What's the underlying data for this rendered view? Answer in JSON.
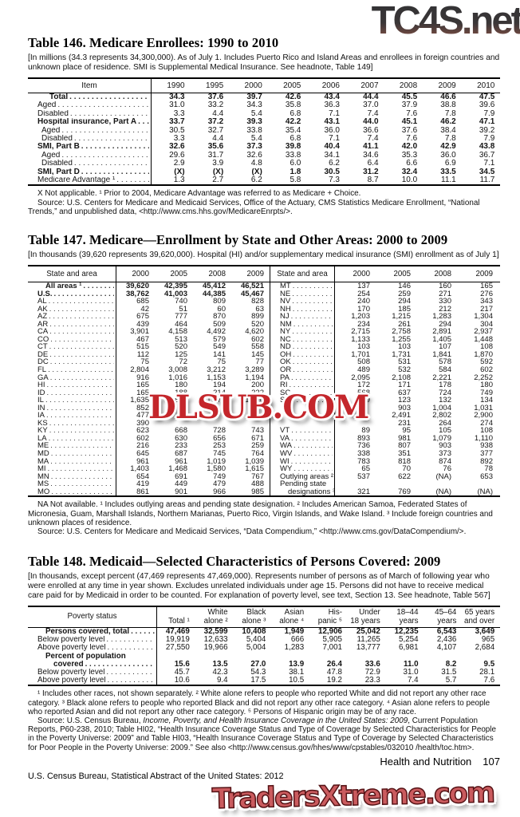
{
  "watermarks": {
    "top": "TC4S.net",
    "middle": "DLSUB.COM",
    "bottom": "TradersXtreme.com"
  },
  "table146": {
    "title": "Table 146. Medicare Enrollees: 1990 to 2010",
    "headnote": "[In millions (34.3 represents 34,300,000). As of July 1. Includes Puerto Rico and Island Areas and enrollees in foreign countries and unknown place of residence. SMI is Supplemental Medical Insurance. See headnote, Table 149]",
    "stub_header": "Item",
    "col_headers": [
      "1990",
      "1995",
      "2000",
      "2005",
      "2006",
      "2007",
      "2008",
      "2009",
      "2010"
    ],
    "rows": [
      {
        "label": "Total",
        "b": 1,
        "in": 3,
        "v": [
          "34.3",
          "37.6",
          "39.7",
          "42.6",
          "43.4",
          "44.4",
          "45.5",
          "46.6",
          "47.5"
        ]
      },
      {
        "label": "Aged",
        "v": [
          "31.0",
          "33.2",
          "34.3",
          "35.8",
          "36.3",
          "37.0",
          "37.9",
          "38.8",
          "39.6"
        ]
      },
      {
        "label": "Disabled",
        "v": [
          "3.3",
          "4.4",
          "5.4",
          "6.8",
          "7.1",
          "7.4",
          "7.6",
          "7.8",
          "7.9"
        ]
      },
      {
        "label": "Hospital insurance, Part A",
        "b": 1,
        "v": [
          "33.7",
          "37.2",
          "39.3",
          "42.2",
          "43.1",
          "44.0",
          "45.1",
          "46.2",
          "47.1"
        ]
      },
      {
        "label": "Aged",
        "in": 1,
        "v": [
          "30.5",
          "32.7",
          "33.8",
          "35.4",
          "36.0",
          "36.6",
          "37.6",
          "38.4",
          "39.2"
        ]
      },
      {
        "label": "Disabled",
        "in": 1,
        "v": [
          "3.3",
          "4.4",
          "5.4",
          "6.8",
          "7.1",
          "7.4",
          "7.6",
          "7.8",
          "7.9"
        ]
      },
      {
        "label": "SMI, Part B",
        "b": 1,
        "v": [
          "32.6",
          "35.6",
          "37.3",
          "39.8",
          "40.4",
          "41.1",
          "42.0",
          "42.9",
          "43.8"
        ]
      },
      {
        "label": "Aged",
        "in": 1,
        "v": [
          "29.6",
          "31.7",
          "32.6",
          "33.8",
          "34.1",
          "34.6",
          "35.3",
          "36.0",
          "36.7"
        ]
      },
      {
        "label": "Disabled",
        "in": 1,
        "v": [
          "2.9",
          "3.9",
          "4.8",
          "6.0",
          "6.2",
          "6.4",
          "6.6",
          "6.9",
          "7.1"
        ]
      },
      {
        "label": "SMI, Part D",
        "b": 1,
        "v": [
          "(X)",
          "(X)",
          "(X)",
          "1.8",
          "30.5",
          "31.2",
          "32.4",
          "33.5",
          "34.5"
        ]
      },
      {
        "label": "Medicare Advantage ¹",
        "v": [
          "1.3",
          "2.7",
          "6.2",
          "5.8",
          "7.3",
          "8.7",
          "10.0",
          "11.1",
          "11.7"
        ]
      }
    ],
    "footnote": "X Not applicable. ¹ Prior to 2004, Medicare Advantage was referred to as Medicare + Choice.",
    "source": "Source: U.S. Centers for Medicare and Medicaid Services, Office of the Actuary, CMS Statistics Medicare Enrollment, “National Trends,” and unpublished data, <http://www.cms.hhs.gov/MedicareEnrpts/>."
  },
  "table147": {
    "title": "Table 147. Medicare—Enrollment by State and Other Areas: 2000 to 2009",
    "headnote": "[In thousands (39,620 represents 39,620,000). Hospital (HI) and/or supplementary medical insurance (SMI) enrollment as of July 1]",
    "stub_header": "State and area",
    "col_headers": [
      "2000",
      "2005",
      "2008",
      "2009"
    ],
    "left_rows": [
      {
        "label": "All areas ¹",
        "b": 1,
        "in": 2,
        "v": [
          "39,620",
          "42,395",
          "45,412",
          "46,521"
        ]
      },
      {
        "label": "U.S.",
        "b": 1,
        "v": [
          "38,762",
          "41,003",
          "44,385",
          "45,467"
        ]
      },
      {
        "label": "AL",
        "v": [
          "685",
          "740",
          "809",
          "828"
        ]
      },
      {
        "label": "AK",
        "v": [
          "42",
          "51",
          "60",
          "63"
        ]
      },
      {
        "label": "AZ",
        "v": [
          "675",
          "777",
          "870",
          "899"
        ]
      },
      {
        "label": "AR",
        "v": [
          "439",
          "464",
          "509",
          "520"
        ]
      },
      {
        "label": "CA",
        "v": [
          "3,901",
          "4,158",
          "4,492",
          "4,620"
        ]
      },
      {
        "label": "CO",
        "v": [
          "467",
          "513",
          "579",
          "602"
        ]
      },
      {
        "label": "CT",
        "v": [
          "515",
          "520",
          "549",
          "558"
        ]
      },
      {
        "label": "DE",
        "v": [
          "112",
          "125",
          "141",
          "145"
        ]
      },
      {
        "label": "DC",
        "v": [
          "75",
          "72",
          "75",
          "77"
        ]
      },
      {
        "label": "FL",
        "v": [
          "2,804",
          "3,008",
          "3,212",
          "3,289"
        ]
      },
      {
        "label": "GA",
        "v": [
          "916",
          "1,016",
          "1,153",
          "1,194"
        ]
      },
      {
        "label": "HI",
        "v": [
          "165",
          "180",
          "194",
          "200"
        ]
      },
      {
        "label": "ID",
        "v": [
          "165",
          "188",
          "214",
          "222"
        ]
      },
      {
        "label": "IL",
        "v": [
          "1,635",
          "1,674",
          "1,775",
          "1,806"
        ]
      },
      {
        "label": "IN",
        "v": [
          "852",
          "",
          "",
          ""
        ]
      },
      {
        "label": "IA",
        "v": [
          "477",
          "",
          "",
          ""
        ]
      },
      {
        "label": "KS",
        "v": [
          "390",
          "",
          "",
          ""
        ]
      },
      {
        "label": "KY",
        "v": [
          "623",
          "668",
          "728",
          "743"
        ]
      },
      {
        "label": "LA",
        "v": [
          "602",
          "630",
          "656",
          "671"
        ]
      },
      {
        "label": "ME",
        "v": [
          "216",
          "233",
          "253",
          "259"
        ]
      },
      {
        "label": "MD",
        "v": [
          "645",
          "687",
          "745",
          "764"
        ]
      },
      {
        "label": "MA",
        "v": [
          "961",
          "961",
          "1,019",
          "1,039"
        ]
      },
      {
        "label": "MI",
        "v": [
          "1,403",
          "1,468",
          "1,580",
          "1,615"
        ]
      },
      {
        "label": "MN",
        "v": [
          "654",
          "691",
          "749",
          "767"
        ]
      },
      {
        "label": "MS",
        "v": [
          "419",
          "449",
          "479",
          "488"
        ]
      },
      {
        "label": "MO",
        "v": [
          "861",
          "901",
          "966",
          "985"
        ]
      }
    ],
    "right_rows": [
      {
        "label": "MT",
        "v": [
          "137",
          "146",
          "160",
          "165"
        ]
      },
      {
        "label": "NE",
        "v": [
          "254",
          "259",
          "271",
          "276"
        ]
      },
      {
        "label": "NV",
        "v": [
          "240",
          "294",
          "330",
          "343"
        ]
      },
      {
        "label": "NH",
        "v": [
          "170",
          "185",
          "212",
          "217"
        ]
      },
      {
        "label": "NJ",
        "v": [
          "1,203",
          "1,215",
          "1,283",
          "1,304"
        ]
      },
      {
        "label": "NM",
        "v": [
          "234",
          "261",
          "294",
          "304"
        ]
      },
      {
        "label": "NY",
        "v": [
          "2,715",
          "2,758",
          "2,891",
          "2,937"
        ]
      },
      {
        "label": "NC",
        "v": [
          "1,133",
          "1,255",
          "1,405",
          "1,448"
        ]
      },
      {
        "label": "ND",
        "v": [
          "103",
          "103",
          "107",
          "108"
        ]
      },
      {
        "label": "OH",
        "v": [
          "1,701",
          "1,731",
          "1,841",
          "1,870"
        ]
      },
      {
        "label": "OK",
        "v": [
          "508",
          "531",
          "578",
          "592"
        ]
      },
      {
        "label": "OR",
        "v": [
          "489",
          "532",
          "584",
          "602"
        ]
      },
      {
        "label": "PA",
        "v": [
          "2,095",
          "2,108",
          "2,221",
          "2,252"
        ]
      },
      {
        "label": "RI",
        "v": [
          "172",
          "171",
          "178",
          "180"
        ]
      },
      {
        "label": "SC",
        "v": [
          "568",
          "637",
          "724",
          "749"
        ]
      },
      {
        "label": "SD",
        "v": [
          "119",
          "123",
          "132",
          "134"
        ]
      },
      {
        "label": "",
        "nd": 1,
        "v": [
          "",
          "903",
          "1,004",
          "1,031"
        ]
      },
      {
        "label": "",
        "nd": 1,
        "v": [
          "",
          "2,491",
          "2,802",
          "2,900"
        ]
      },
      {
        "label": "",
        "nd": 1,
        "v": [
          "",
          "231",
          "264",
          "274"
        ]
      },
      {
        "label": "VT",
        "v": [
          "89",
          "95",
          "105",
          "108"
        ]
      },
      {
        "label": "VA",
        "v": [
          "893",
          "981",
          "1,079",
          "1,110"
        ]
      },
      {
        "label": "WA",
        "v": [
          "736",
          "807",
          "903",
          "938"
        ]
      },
      {
        "label": "WV",
        "v": [
          "338",
          "351",
          "373",
          "377"
        ]
      },
      {
        "label": "WI",
        "v": [
          "783",
          "818",
          "874",
          "892"
        ]
      },
      {
        "label": "WY",
        "v": [
          "65",
          "70",
          "76",
          "78"
        ]
      },
      {
        "label": "Outlying areas ²",
        "v": [
          "537",
          "622",
          "(NA)",
          "653"
        ]
      },
      {
        "label": "Pending state",
        "nd": 1,
        "v": [
          "",
          "",
          "",
          ""
        ]
      },
      {
        "label": "designations ³",
        "in": 2,
        "v": [
          "321",
          "769",
          "(NA)",
          "(NA)"
        ]
      }
    ],
    "footnote": "NA Not available. ¹ Includes outlying areas and pending state designation. ² Includes American Samoa, Federated States of Micronesia, Guam, Marshall Islands, Northern Marianas, Puerto Rico, Virgin Islands, and Wake Island. ³ Include foreign countries and unknown places of residence.",
    "source": "Source: U.S. Centers for Medicare and Medicaid Services, “Data Compendium,” <http://www.cms.gov/DataCompendium/>."
  },
  "table148": {
    "title": "Table 148. Medicaid—Selected Characteristics of Persons Covered: 2009",
    "headnote": "[In thousands, except percent (47,469 represents 47,469,000). Represents number of persons as of March of following year who were enrolled at any time in year shown. Excludes unrelated individuals under age 15. Persons did not have to receive medical care paid for by Medicaid in order to be counted. For explanation of poverty level, see text, Section 13. See headnote, Table 567]",
    "stub_header": "Poverty status",
    "col_headers": [
      "Total ¹",
      "White\nalone ²",
      "Black\nalone ³",
      "Asian\nalone ⁴",
      "His-\npanic ⁵",
      "Under\n18 years",
      "18–44\nyears",
      "45–64\nyears",
      "65 years\nand over"
    ],
    "rows": [
      {
        "label": "Persons covered, total",
        "b": 1,
        "in": 2,
        "v": [
          "47,469",
          "32,599",
          "10,408",
          "1,949",
          "12,906",
          "25,042",
          "12,235",
          "6,543",
          "3,649"
        ]
      },
      {
        "label": "Below poverty level",
        "v": [
          "19,919",
          "12,633",
          "5,404",
          "666",
          "5,905",
          "11,265",
          "5,254",
          "2,436",
          "965"
        ]
      },
      {
        "label": "Above poverty level",
        "v": [
          "27,550",
          "19,966",
          "5,004",
          "1,283",
          "7,001",
          "13,777",
          "6,981",
          "4,107",
          "2,684"
        ]
      },
      {
        "label": "Percent of population",
        "b": 1,
        "in": 2,
        "nd": 1,
        "v": [
          "",
          "",
          "",
          "",
          "",
          "",
          "",
          "",
          ""
        ]
      },
      {
        "label": "covered",
        "b": 1,
        "in": 4,
        "v": [
          "15.6",
          "13.5",
          "27.0",
          "13.9",
          "26.4",
          "33.6",
          "11.0",
          "8.2",
          "9.5"
        ]
      },
      {
        "label": "Below poverty level",
        "v": [
          "45.7",
          "42.3",
          "54.3",
          "38.1",
          "47.8",
          "72.9",
          "31.0",
          "31.5",
          "28.1"
        ]
      },
      {
        "label": "Above poverty level",
        "v": [
          "10.6",
          "9.4",
          "17.5",
          "10.5",
          "19.2",
          "23.3",
          "7.4",
          "5.7",
          "7.6"
        ]
      }
    ],
    "footnote": "¹ Includes other races, not shown separately. ² White alone refers to people who reported White and did not report any other race category. ³ Black alone refers to people who reported Black and did not report any other race category. ⁴ Asian alone refers to people who reported Asian and did not report any other race category. ⁵ Persons of Hispanic origin may be of any race.",
    "source_pre": "Source: U.S. Census Bureau, ",
    "source_italic": "Income, Poverty, and Health Insurance Coverage in the United States: 2009",
    "source_post": ", Current Population Reports, P60-238, 2010; Table HI02, “Health Insurance Coverage Status and Type of Coverage by Selected Characteristics for People in the Poverty Universe: 2009” and Table HI03, “Health Insurance Coverage Status and Type of Coverage by Selected Characteristics for Poor People in the Poverty Universe: 2009.” See also <http://www.census.gov/hhes/www/cpstables/032010 /health/toc.htm>."
  },
  "footer": {
    "section": "Health and Nutrition",
    "page_number": "107",
    "credit": "U.S. Census Bureau, Statistical Abstract of the United States: 2012"
  }
}
